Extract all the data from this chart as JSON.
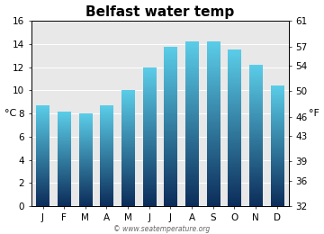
{
  "title": "Belfast water temp",
  "months": [
    "J",
    "F",
    "M",
    "A",
    "M",
    "J",
    "J",
    "A",
    "S",
    "O",
    "N",
    "D"
  ],
  "values_c": [
    8.7,
    8.1,
    8.0,
    8.7,
    10.0,
    11.9,
    13.7,
    14.2,
    14.2,
    13.5,
    12.2,
    10.4
  ],
  "ylim_c": [
    0,
    16
  ],
  "yticks_c": [
    0,
    2,
    4,
    6,
    8,
    10,
    12,
    14,
    16
  ],
  "yticks_f": [
    32,
    36,
    39,
    43,
    46,
    50,
    54,
    57,
    61
  ],
  "ylabel_left": "°C",
  "ylabel_right": "°F",
  "bar_color_top": "#5BCDE8",
  "bar_color_bottom": "#0C2D5A",
  "bg_color": "#E8E8E8",
  "grid_color": "#FFFFFF",
  "watermark": "© www.seatemperature.org",
  "title_fontsize": 11,
  "axis_fontsize": 8,
  "tick_fontsize": 7.5,
  "bar_width": 0.6
}
